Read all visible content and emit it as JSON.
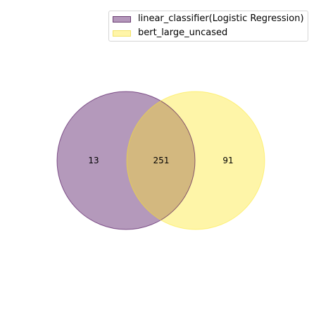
{
  "legend": {
    "items": [
      {
        "label": "linear_classifier(Logistic Regression)",
        "fill": "#b497bb",
        "edge": "#6a3e72"
      },
      {
        "label": "bert_large_uncased",
        "fill": "#fff5a8",
        "edge": "#f2e36a"
      }
    ]
  },
  "venn": {
    "left_only": "13",
    "overlap": "251",
    "right_only": "91",
    "colors": {
      "left_fill": "#440154",
      "left_edge": "#440154",
      "right_fill": "#fde725",
      "right_edge": "#fde725",
      "overlap_fill": "#d3b87f"
    }
  }
}
